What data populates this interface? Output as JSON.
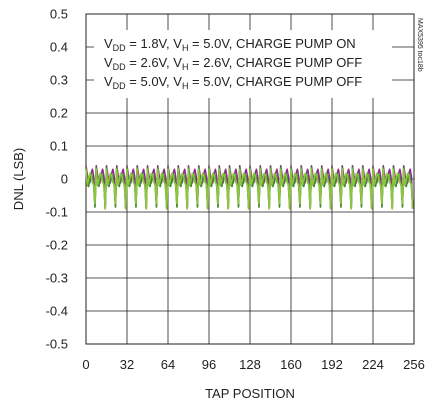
{
  "chart_data": {
    "type": "line",
    "title": "",
    "xlabel": "TAP POSITION",
    "ylabel": "DNL (LSB)",
    "xlim": [
      0,
      256
    ],
    "ylim": [
      -0.5,
      0.5
    ],
    "x_ticks": [
      "0",
      "32",
      "64",
      "96",
      "128",
      "160",
      "192",
      "224",
      "256"
    ],
    "y_ticks": [
      "0.5",
      "0.4",
      "0.3",
      "0.2",
      "0.1",
      "0",
      "-0.1",
      "-0.2",
      "-0.3",
      "-0.4",
      "-0.5"
    ],
    "grid": true,
    "legend_position": "top",
    "legend_lines": [
      {
        "prefix": "V",
        "sub1": "DD",
        "mid1": " = 1.8V, V",
        "sub2": "H",
        "rest": " = 5.0V, CHARGE PUMP ON"
      },
      {
        "prefix": "V",
        "sub1": "DD",
        "mid1": " = 2.6V, V",
        "sub2": "H",
        "rest": " = 2.6V, CHARGE PUMP OFF"
      },
      {
        "prefix": "V",
        "sub1": "DD",
        "mid1": " = 5.0V, V",
        "sub2": "H",
        "rest": " = 5.0V, CHARGE PUMP OFF"
      }
    ],
    "series": [
      {
        "color": "#8e2a8a",
        "peak": 0.04,
        "valley": -0.08,
        "offset": 0.006
      },
      {
        "color": "#3f8a2e",
        "peak": 0.035,
        "valley": -0.085,
        "offset": -0.004
      },
      {
        "color": "#8cc63f",
        "peak": 0.03,
        "valley": -0.075,
        "offset": 0.0
      }
    ],
    "pattern": {
      "period": 8,
      "dip_at": 7,
      "deep_dip_every": 16,
      "deep_valley": -0.09
    }
  },
  "watermark": "MAX5395 toc18b"
}
